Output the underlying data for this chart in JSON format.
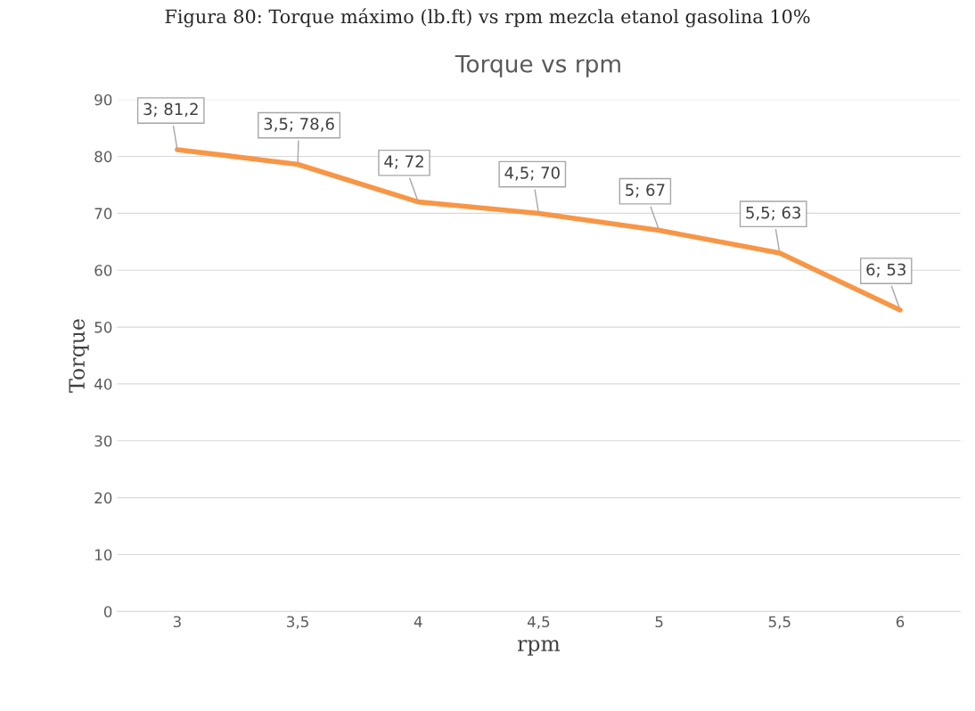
{
  "chart_data": {
    "type": "line",
    "title": "Torque vs rpm",
    "xlabel": "rpm",
    "ylabel": "Torque",
    "annotations": [
      "Figura 80: Torque máximo (lb.ft) vs rpm mezcla etanol gasolina 10%"
    ],
    "categories": [
      "3",
      "3,5",
      "4",
      "4,5",
      "5",
      "5,5",
      "6"
    ],
    "series": [
      {
        "color": "#f79646",
        "values": [
          81.2,
          78.6,
          72,
          70,
          67,
          63,
          53
        ],
        "value_labels": [
          "3; 81,2",
          "3,5; 78,6",
          "4; 72",
          "4,5; 70",
          "5; 67",
          "5,5; 63",
          "6; 53"
        ]
      }
    ],
    "ylim": [
      0,
      90
    ],
    "yticks": [
      0,
      10,
      20,
      30,
      40,
      50,
      60,
      70,
      80,
      90
    ],
    "grid": "y",
    "legend": false,
    "marker": "none",
    "line_style": "solid"
  }
}
